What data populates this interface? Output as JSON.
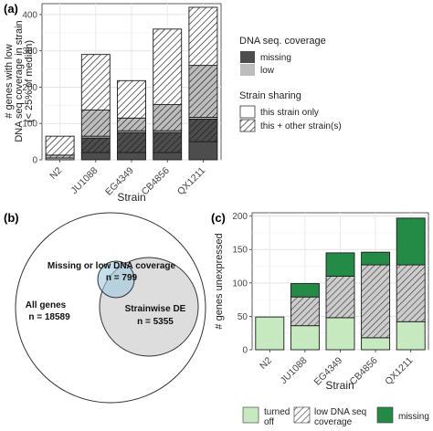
{
  "panels": {
    "a": {
      "label": "(a)"
    },
    "b": {
      "label": "(b)"
    },
    "c": {
      "label": "(c)"
    }
  },
  "chart_data": [
    {
      "id": "a",
      "type": "bar",
      "stacked": true,
      "xlabel": "Strain",
      "ylabel_lines": [
        "# genes with low",
        "DNA seq coverage in strain",
        "(< 25% of median)"
      ],
      "categories": [
        "N2",
        "JU1088",
        "EG4349",
        "CB4856",
        "QX1211"
      ],
      "ylim": [
        0,
        430
      ],
      "yticks": [
        0,
        100,
        200,
        300,
        400
      ],
      "grid": true,
      "series": [
        {
          "coverage": "missing",
          "sharing": "this strain only",
          "color": "#4d4d4d",
          "hatched": false,
          "values": [
            0,
            20,
            20,
            20,
            50
          ]
        },
        {
          "coverage": "missing",
          "sharing": "this + other strain(s)",
          "color": "#4d4d4d",
          "hatched": true,
          "values": [
            0,
            40,
            55,
            55,
            62
          ]
        },
        {
          "coverage": "low",
          "sharing": "this strain only",
          "color": "#bdbdbd",
          "hatched": false,
          "values": [
            5,
            5,
            5,
            5,
            5
          ]
        },
        {
          "coverage": "low",
          "sharing": "this + other strain(s)",
          "color": "#bdbdbd",
          "hatched": true,
          "values": [
            8,
            72,
            35,
            72,
            143
          ]
        },
        {
          "coverage": "none",
          "sharing": "this strain only",
          "color": "#ffffff",
          "hatched": false,
          "values": [
            0,
            0,
            0,
            0,
            0
          ]
        },
        {
          "coverage": "none",
          "sharing": "this + other strain(s)",
          "color": "#ffffff",
          "hatched": true,
          "values": [
            52,
            153,
            103,
            208,
            160
          ]
        }
      ],
      "legend": {
        "position": "right",
        "coverage_title": "DNA seq. coverage",
        "coverage_items": [
          {
            "label": "missing",
            "color": "#4d4d4d"
          },
          {
            "label": "low",
            "color": "#bdbdbd"
          }
        ],
        "sharing_title": "Strain sharing",
        "sharing_items": [
          {
            "label": "this strain only",
            "hatched": false
          },
          {
            "label": "this + other strain(s)",
            "hatched": true
          }
        ]
      }
    },
    {
      "id": "b",
      "type": "venn",
      "sets": [
        {
          "label": "All genes",
          "count_text": "n = 18589",
          "color": "#ffffff"
        },
        {
          "label": "Strainwise DE",
          "count_text": "n = 5355",
          "color": "#d9d9d9"
        },
        {
          "label": "Missing or low DNA coverage",
          "count_text": "n = 799",
          "color": "#b3d9ea"
        }
      ]
    },
    {
      "id": "c",
      "type": "bar",
      "stacked": true,
      "xlabel": "Strain",
      "ylabel": "# genes unexpressed",
      "categories": [
        "N2",
        "JU1088",
        "EG4349",
        "CB4856",
        "QX1211"
      ],
      "ylim": [
        0,
        205
      ],
      "yticks": [
        0,
        50,
        100,
        150,
        200
      ],
      "grid": true,
      "series": [
        {
          "name": "turned off",
          "color": "#c7e9c0",
          "hatched": false,
          "values": [
            49,
            36,
            48,
            18,
            42
          ]
        },
        {
          "name": "low DNA seq coverage",
          "color": "#cccccc",
          "hatched": true,
          "values": [
            0,
            43,
            62,
            109,
            85
          ]
        },
        {
          "name": "missing",
          "color": "#238b45",
          "hatched": false,
          "values": [
            0,
            20,
            35,
            19,
            70
          ]
        }
      ],
      "legend": {
        "position": "bottom",
        "items": [
          {
            "label_lines": [
              "turned",
              "off"
            ],
            "color": "#c7e9c0",
            "hatched": false
          },
          {
            "label_lines": [
              "low DNA seq",
              "coverage"
            ],
            "color": "#cccccc",
            "hatched": true
          },
          {
            "label_lines": [
              "missing"
            ],
            "color": "#238b45",
            "hatched": false
          }
        ]
      }
    }
  ]
}
